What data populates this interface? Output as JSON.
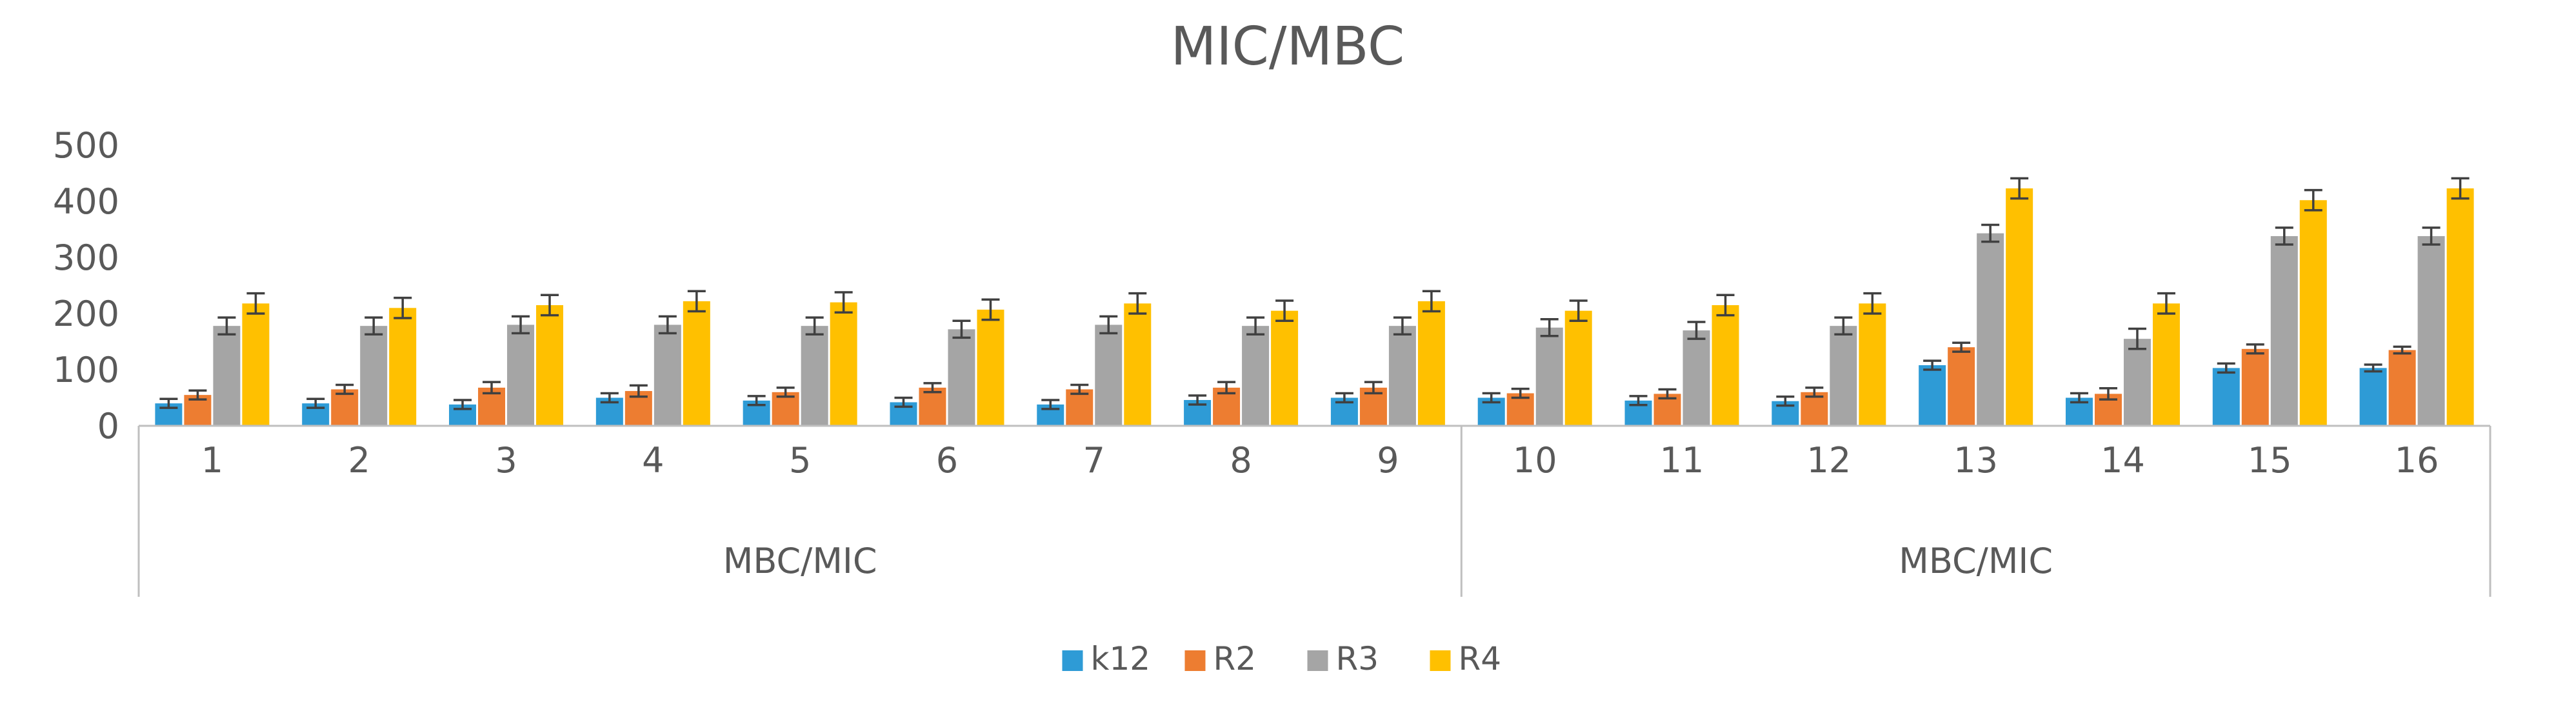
{
  "chart_data": {
    "type": "bar",
    "title": "MIC/MBC",
    "xlabel": "",
    "ylabel": "",
    "ylim": [
      0,
      500
    ],
    "yticks": [
      0,
      100,
      200,
      300,
      400,
      500
    ],
    "grid": false,
    "legend": "bottom",
    "categories": [
      "1",
      "2",
      "3",
      "4",
      "5",
      "6",
      "7",
      "8",
      "9",
      "10",
      "11",
      "12",
      "13",
      "14",
      "15",
      "16"
    ],
    "groups": [
      {
        "label": "MBC/MIC",
        "categories": [
          "1",
          "2",
          "3",
          "4",
          "5",
          "6",
          "7",
          "8",
          "9"
        ]
      },
      {
        "label": "MBC/MIC",
        "categories": [
          "10",
          "11",
          "12",
          "13",
          "14",
          "15",
          "16"
        ]
      }
    ],
    "series": [
      {
        "name": "k12",
        "color": "#2E9BD6",
        "values": [
          40,
          40,
          38,
          50,
          45,
          42,
          38,
          46,
          50,
          50,
          45,
          44,
          108,
          50,
          103,
          103
        ],
        "errors": [
          8,
          8,
          8,
          8,
          8,
          8,
          8,
          8,
          8,
          8,
          8,
          8,
          8,
          8,
          8,
          6
        ]
      },
      {
        "name": "R2",
        "color": "#ED7D31",
        "values": [
          55,
          65,
          68,
          62,
          60,
          68,
          65,
          68,
          68,
          58,
          57,
          60,
          140,
          57,
          137,
          135
        ],
        "errors": [
          8,
          8,
          10,
          10,
          8,
          8,
          8,
          10,
          10,
          8,
          8,
          8,
          8,
          10,
          8,
          6
        ]
      },
      {
        "name": "R3",
        "color": "#A5A5A5",
        "values": [
          178,
          178,
          180,
          180,
          178,
          172,
          180,
          178,
          178,
          175,
          170,
          178,
          343,
          155,
          338,
          338
        ],
        "errors": [
          15,
          15,
          15,
          15,
          15,
          15,
          15,
          15,
          15,
          15,
          15,
          15,
          15,
          18,
          15,
          15
        ]
      },
      {
        "name": "R4",
        "color": "#FFC000",
        "values": [
          218,
          210,
          215,
          222,
          220,
          207,
          218,
          205,
          222,
          205,
          215,
          218,
          423,
          218,
          402,
          423
        ],
        "errors": [
          18,
          18,
          18,
          18,
          18,
          18,
          18,
          18,
          18,
          18,
          18,
          18,
          18,
          18,
          18,
          18
        ]
      }
    ]
  }
}
